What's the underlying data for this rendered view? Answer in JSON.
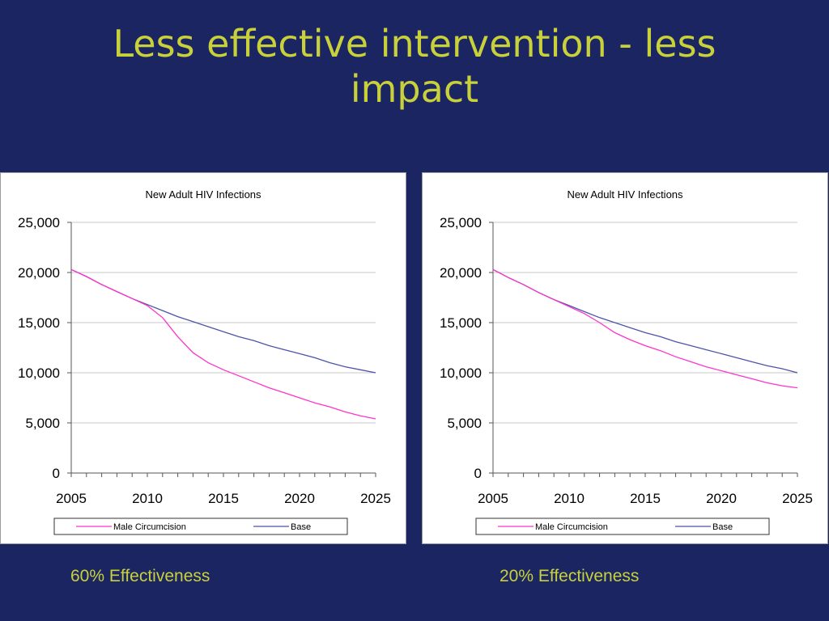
{
  "slide": {
    "title_line1": "Less effective intervention - less",
    "title_line2": "impact",
    "captions": [
      "60% Effectiveness",
      "20% Effectiveness"
    ],
    "background_color": "#1b2561",
    "text_color": "#c9d13a"
  },
  "chart_data": [
    {
      "type": "line",
      "title": "New Adult HIV Infections",
      "xlabel": "",
      "ylabel": "",
      "xlim": [
        2005,
        2025
      ],
      "ylim": [
        0,
        25000
      ],
      "x_ticks": [
        2005,
        2010,
        2015,
        2020,
        2025
      ],
      "y_ticks": [
        "0",
        "5,000",
        "10,000",
        "15,000",
        "20,000",
        "25,000"
      ],
      "y_tick_values": [
        0,
        5000,
        10000,
        15000,
        20000,
        25000
      ],
      "grid": "horizontal",
      "legend": "bottom",
      "x": [
        2005,
        2006,
        2007,
        2008,
        2009,
        2010,
        2011,
        2012,
        2013,
        2014,
        2015,
        2016,
        2017,
        2018,
        2019,
        2020,
        2021,
        2022,
        2023,
        2024,
        2025
      ],
      "series": [
        {
          "name": "Male Circumcision",
          "color": "#ff33cc",
          "values": [
            20300,
            19600,
            18800,
            18100,
            17400,
            16700,
            15500,
            13600,
            12000,
            11000,
            10300,
            9700,
            9100,
            8500,
            8000,
            7500,
            7000,
            6600,
            6100,
            5700,
            5400
          ]
        },
        {
          "name": "Base",
          "color": "#4a55a8",
          "values": [
            20300,
            19600,
            18800,
            18100,
            17400,
            16800,
            16200,
            15600,
            15100,
            14600,
            14100,
            13600,
            13200,
            12700,
            12300,
            11900,
            11500,
            11000,
            10600,
            10300,
            10000
          ]
        }
      ]
    },
    {
      "type": "line",
      "title": "New Adult HIV Infections",
      "xlabel": "",
      "ylabel": "",
      "xlim": [
        2005,
        2025
      ],
      "ylim": [
        0,
        25000
      ],
      "x_ticks": [
        2005,
        2010,
        2015,
        2020,
        2025
      ],
      "y_ticks": [
        "0",
        "5,000",
        "10,000",
        "15,000",
        "20,000",
        "25,000"
      ],
      "y_tick_values": [
        0,
        5000,
        10000,
        15000,
        20000,
        25000
      ],
      "grid": "horizontal",
      "legend": "bottom",
      "x": [
        2005,
        2006,
        2007,
        2008,
        2009,
        2010,
        2011,
        2012,
        2013,
        2014,
        2015,
        2016,
        2017,
        2018,
        2019,
        2020,
        2021,
        2022,
        2023,
        2024,
        2025
      ],
      "series": [
        {
          "name": "Male Circumcision",
          "color": "#ff33cc",
          "values": [
            20300,
            19500,
            18800,
            18000,
            17300,
            16600,
            15900,
            15000,
            14000,
            13300,
            12700,
            12200,
            11600,
            11100,
            10600,
            10200,
            9800,
            9400,
            9000,
            8700,
            8500
          ]
        },
        {
          "name": "Base",
          "color": "#4a55a8",
          "values": [
            20300,
            19500,
            18800,
            18000,
            17300,
            16700,
            16100,
            15500,
            15000,
            14500,
            14000,
            13600,
            13100,
            12700,
            12300,
            11900,
            11500,
            11100,
            10700,
            10400,
            10000
          ]
        }
      ]
    }
  ]
}
